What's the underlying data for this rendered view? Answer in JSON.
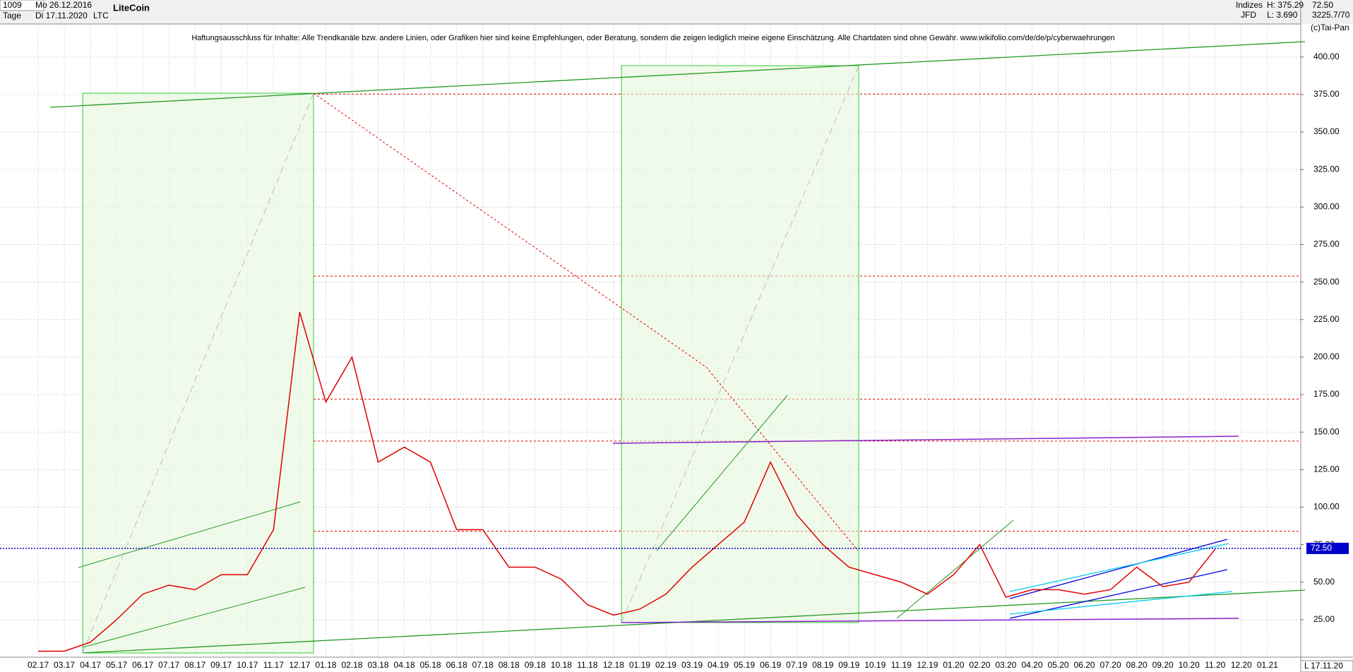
{
  "header": {
    "count": "1009",
    "period": "Tage",
    "from": "Mo 26.12.2016",
    "to": "Di 17.11.2020",
    "symbol": "LTC",
    "name": "LiteCoin",
    "source": "Indizes",
    "broker": "JFD",
    "high": "H: 375.29",
    "low": "L: 3.690",
    "volume": "3225.7/70",
    "copyright": "(c)Tai-Pan"
  },
  "chart_data": {
    "type": "line",
    "annotation": "Haftungsausschluss für Inhalte: Alle Trendkanäle bzw. andere Linien, oder Grafiken hier sind keine Empfehlungen, oder Beratung, sondern die zeigen lediglich meine eigene Einschätzung. Alle Chartdaten sind ohne Gewähr.  www.wikifolio.com/de/de/p/cyberwaehrungen",
    "categories": [
      "02.17",
      "03.17",
      "04.17",
      "05.17",
      "06.17",
      "07.17",
      "08.17",
      "09.17",
      "10.17",
      "11.17",
      "12.17",
      "01.18",
      "02.18",
      "03.18",
      "04.18",
      "05.18",
      "06.18",
      "07.18",
      "08.18",
      "09.18",
      "10.18",
      "11.18",
      "12.18",
      "01.19",
      "02.19",
      "03.19",
      "04.19",
      "05.19",
      "06.19",
      "07.19",
      "08.19",
      "09.19",
      "10.19",
      "11.19",
      "12.19",
      "01.20",
      "02.20",
      "03.20",
      "04.20",
      "05.20",
      "06.20",
      "07.20",
      "08.20",
      "09.20",
      "10.20",
      "11.20",
      "12.20",
      "01.21"
    ],
    "series": [
      {
        "name": "LTC",
        "color": "#e00000",
        "values": [
          4,
          4,
          10,
          25,
          42,
          48,
          45,
          55,
          55,
          85,
          230,
          170,
          200,
          130,
          140,
          130,
          85,
          85,
          60,
          60,
          52,
          35,
          28,
          32,
          42,
          60,
          75,
          90,
          130,
          95,
          75,
          60,
          55,
          50,
          42,
          55,
          75,
          40,
          45,
          45,
          42,
          45,
          60,
          47,
          50,
          72,
          null,
          null
        ]
      }
    ],
    "ylim": [
      0,
      422
    ],
    "yticks": [
      {
        "value": 25,
        "label": "25.00"
      },
      {
        "value": 50,
        "label": "50.00"
      },
      {
        "value": 75,
        "label": "75.00"
      },
      {
        "value": 100,
        "label": "100.00"
      },
      {
        "value": 125,
        "label": "125.00"
      },
      {
        "value": 150,
        "label": "150.00"
      },
      {
        "value": 175,
        "label": "175.00"
      },
      {
        "value": 200,
        "label": "200.00"
      },
      {
        "value": 225,
        "label": "225.00"
      },
      {
        "value": 250,
        "label": "250.00"
      },
      {
        "value": 275,
        "label": "275.00"
      },
      {
        "value": 300,
        "label": "300.00"
      },
      {
        "value": 325,
        "label": "325.00"
      },
      {
        "value": 350,
        "label": "350.00"
      },
      {
        "value": 375,
        "label": "375.00"
      },
      {
        "value": 400,
        "label": "400.00"
      }
    ],
    "last": {
      "value": 72.5,
      "label": "72.50",
      "color": "#0000cc"
    },
    "reference_lines": [
      {
        "value": 375.3,
        "color": "#e00000"
      },
      {
        "value": 254,
        "color": "#e00000"
      },
      {
        "value": 172,
        "color": "#e00000"
      },
      {
        "value": 144,
        "color": "#e00000"
      },
      {
        "value": 84,
        "color": "#e00000"
      }
    ],
    "date_box": "17.11.20",
    "scale_mode": "L",
    "grid": true
  }
}
